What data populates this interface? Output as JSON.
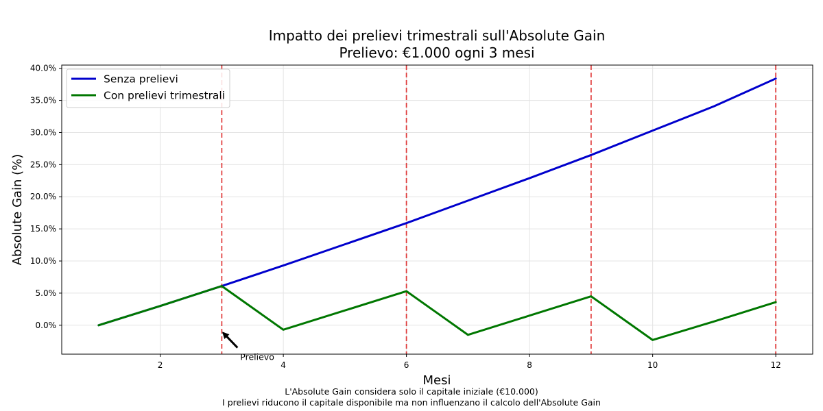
{
  "title_line1": "Impatto dei prelievi trimestrali sull'Absolute Gain",
  "title_line2": "Prelievo: €1.000 ogni 3 mesi",
  "footer_line1": "L'Absolute Gain considera solo il capitale iniziale (€10.000)",
  "footer_line2": "I prelievi riducono il capitale disponibile ma non influenzano il calcolo dell'Absolute Gain",
  "chart_data": {
    "type": "line",
    "xlabel": "Mesi",
    "ylabel": "Absolute Gain (%)",
    "xlim": [
      0.4,
      12.6
    ],
    "ylim": [
      -4.5,
      40.5
    ],
    "xticks": [
      2,
      4,
      6,
      8,
      10,
      12
    ],
    "yticks": [
      0,
      5,
      10,
      15,
      20,
      25,
      30,
      35,
      40
    ],
    "grid": true,
    "legend_position": "top-left",
    "series": [
      {
        "name": "Senza prelievi",
        "color": "#0000cc",
        "x": [
          1,
          2,
          3,
          4,
          5,
          6,
          7,
          8,
          9,
          10,
          11,
          12
        ],
        "values": [
          0.0,
          3.0,
          6.1,
          9.3,
          12.6,
          15.9,
          19.4,
          22.9,
          26.5,
          30.3,
          34.1,
          38.4
        ]
      },
      {
        "name": "Con prelievi trimestrali",
        "color": "#007700",
        "x": [
          1,
          2,
          3,
          4,
          5,
          6,
          7,
          8,
          9,
          10,
          11,
          12
        ],
        "values": [
          0.0,
          3.0,
          6.1,
          -0.7,
          2.3,
          5.3,
          -1.5,
          1.5,
          4.5,
          -2.3,
          0.6,
          3.6
        ]
      }
    ],
    "withdrawal_markers": {
      "x": [
        3,
        6,
        9,
        12
      ],
      "color": "#dd2222"
    },
    "annotations": [
      {
        "text": "Prelievo",
        "x": 3,
        "y": 0.0,
        "text_x": 3.3,
        "text_y": -5.2
      }
    ]
  }
}
